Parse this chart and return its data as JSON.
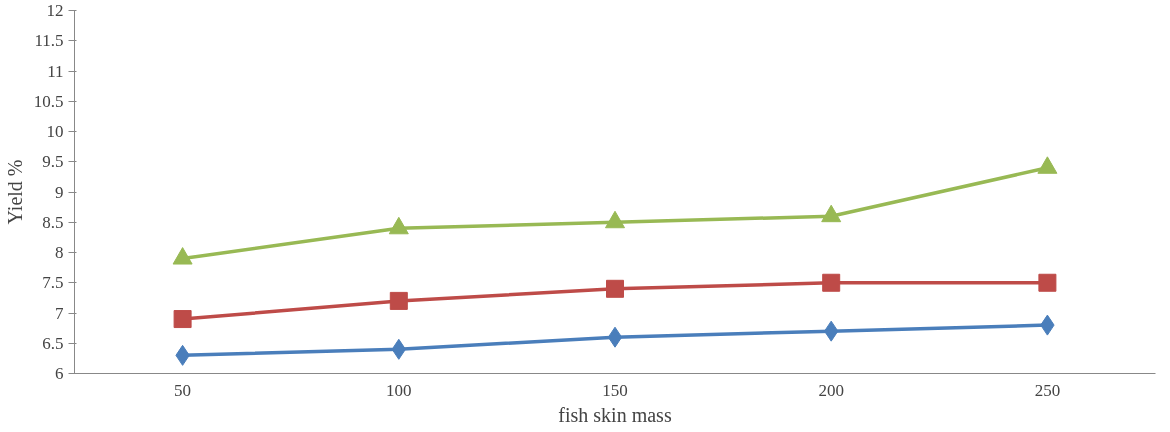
{
  "chart_data": {
    "type": "line",
    "xlabel": "fish skin mass",
    "ylabel": "Yield %",
    "categories": [
      "50",
      "100",
      "150",
      "200",
      "250"
    ],
    "ylim": [
      6,
      12
    ],
    "yticks": [
      6,
      6.5,
      7,
      7.5,
      8,
      8.5,
      9,
      9.5,
      10,
      10.5,
      11,
      11.5,
      12
    ],
    "line_style": "solid",
    "series": [
      {
        "color": "#4a7ebb",
        "marker": "diamond",
        "values": [
          6.3,
          6.4,
          6.6,
          6.7,
          6.8
        ]
      },
      {
        "color": "#be4b48",
        "marker": "square",
        "values": [
          6.9,
          7.2,
          7.4,
          7.5,
          7.5
        ]
      },
      {
        "color": "#98b954",
        "marker": "triangle",
        "values": [
          7.9,
          8.4,
          8.5,
          8.6,
          9.4
        ]
      }
    ]
  }
}
